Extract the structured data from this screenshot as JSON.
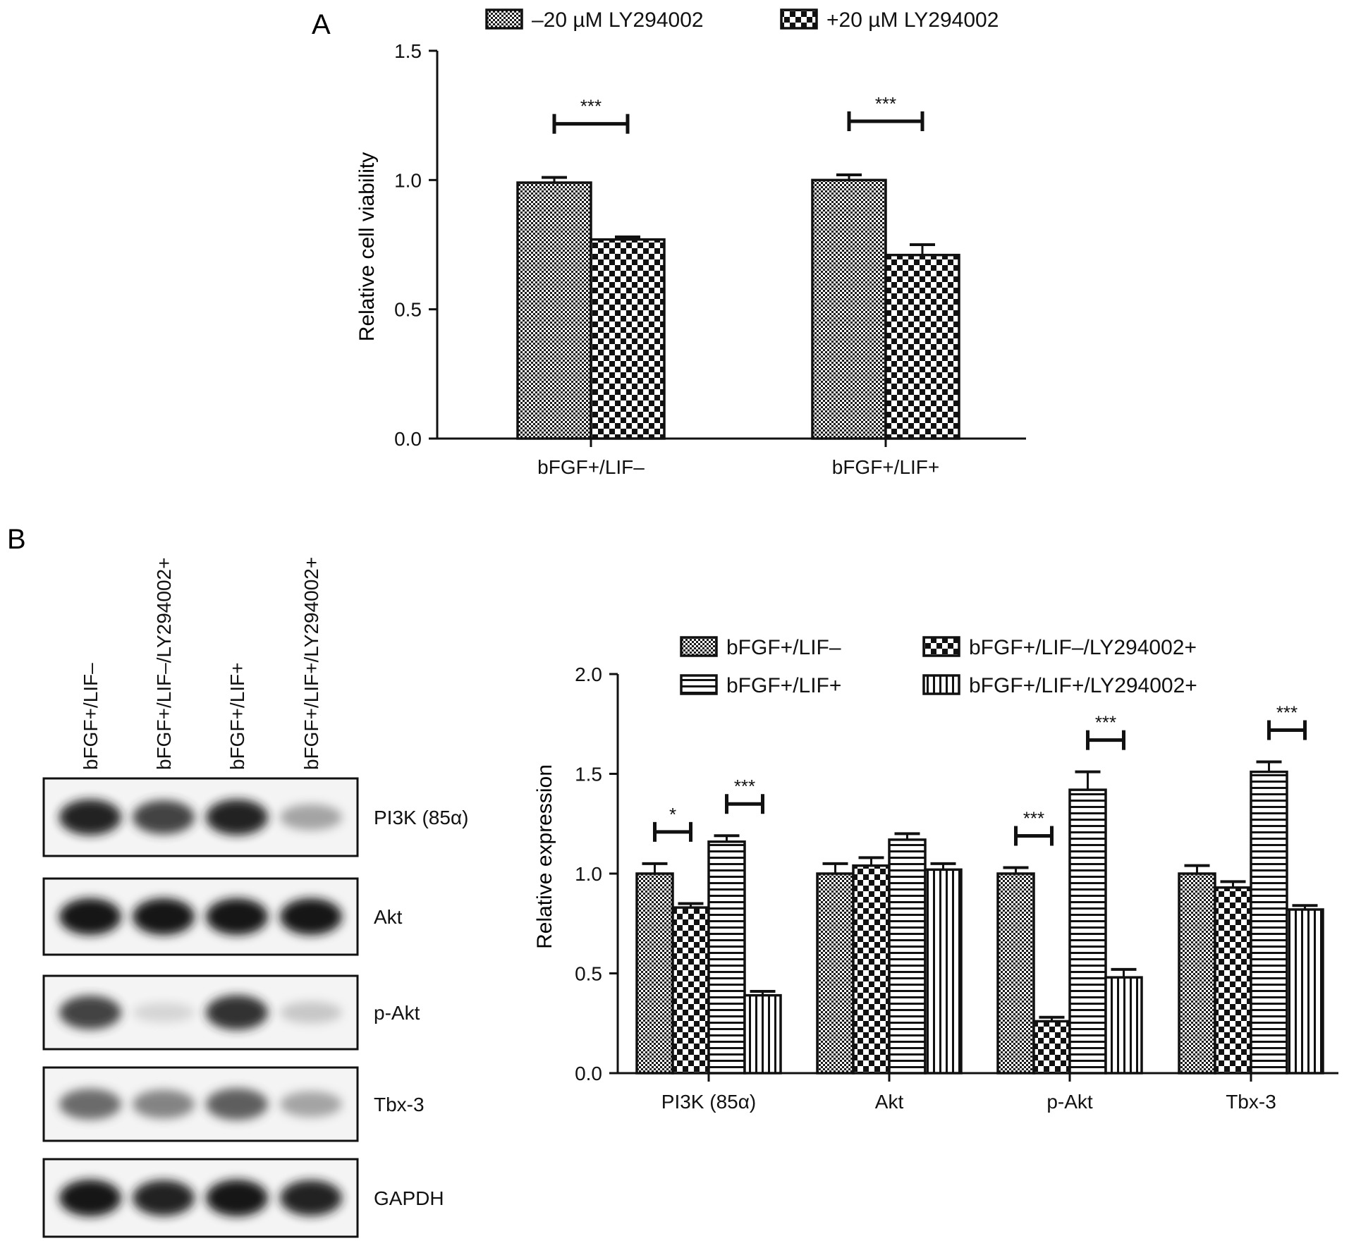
{
  "panels": [
    {
      "label": "A"
    },
    {
      "label": "B"
    }
  ],
  "chart_data": [
    {
      "type": "bar",
      "panel": "A",
      "title": "",
      "xlabel": "",
      "ylabel": "Relative cell viability",
      "ylim": [
        0,
        1.5
      ],
      "yticks": [
        "0.0",
        "0.5",
        "1.0",
        "1.5"
      ],
      "categories": [
        "bFGF+/LIF–",
        "bFGF+/LIF+"
      ],
      "series": [
        {
          "name": "–20 µM LY294002",
          "values": [
            0.99,
            1.0
          ],
          "errors": [
            0.02,
            0.02
          ],
          "pattern": "fine-check"
        },
        {
          "name": "+20 µM LY294002",
          "values": [
            0.77,
            0.71
          ],
          "errors": [
            0.01,
            0.04
          ],
          "pattern": "checker"
        }
      ],
      "significance": [
        {
          "category": 0,
          "between": [
            0,
            1
          ],
          "label": "***"
        },
        {
          "category": 1,
          "between": [
            0,
            1
          ],
          "label": "***"
        }
      ],
      "grid": false,
      "legend": "top"
    },
    {
      "type": "bar",
      "panel": "B",
      "title": "",
      "xlabel": "",
      "ylabel": "Relative expression",
      "ylim": [
        0,
        2.0
      ],
      "yticks": [
        "0.0",
        "0.5",
        "1.0",
        "1.5",
        "2.0"
      ],
      "categories": [
        "PI3K (85α)",
        "Akt",
        "p-Akt",
        "Tbx-3"
      ],
      "series": [
        {
          "name": "bFGF+/LIF–",
          "values": [
            1.0,
            1.0,
            1.0,
            1.0
          ],
          "errors": [
            0.05,
            0.05,
            0.03,
            0.04
          ],
          "pattern": "fine-check"
        },
        {
          "name": "bFGF+/LIF–/LY294002+",
          "values": [
            0.83,
            1.04,
            0.26,
            0.93
          ],
          "errors": [
            0.02,
            0.04,
            0.02,
            0.03
          ],
          "pattern": "checker"
        },
        {
          "name": "bFGF+/LIF+",
          "values": [
            1.16,
            1.17,
            1.42,
            1.51
          ],
          "errors": [
            0.03,
            0.03,
            0.09,
            0.05
          ],
          "pattern": "horizontal"
        },
        {
          "name": "bFGF+/LIF+/LY294002+",
          "values": [
            0.39,
            1.02,
            0.48,
            0.82
          ],
          "errors": [
            0.02,
            0.03,
            0.04,
            0.02
          ],
          "pattern": "vertical"
        }
      ],
      "significance": [
        {
          "category": 0,
          "between": [
            0,
            1
          ],
          "label": "*"
        },
        {
          "category": 0,
          "between": [
            2,
            3
          ],
          "label": "***"
        },
        {
          "category": 2,
          "between": [
            0,
            1
          ],
          "label": "***"
        },
        {
          "category": 2,
          "between": [
            2,
            3
          ],
          "label": "***"
        },
        {
          "category": 3,
          "between": [
            2,
            3
          ],
          "label": "***"
        }
      ],
      "grid": false,
      "legend": "top"
    }
  ],
  "western_blot": {
    "lanes": [
      "bFGF+/LIF–",
      "bFGF+/LIF–/LY294002+",
      "bFGF+/LIF+",
      "bFGF+/LIF+/LY294002+"
    ],
    "rows": [
      {
        "label": "PI3K (85α)",
        "intensity": [
          0.95,
          0.85,
          0.95,
          0.45
        ]
      },
      {
        "label": "Akt",
        "intensity": [
          1.0,
          1.0,
          1.0,
          1.0
        ]
      },
      {
        "label": "p-Akt",
        "intensity": [
          0.85,
          0.15,
          0.9,
          0.25
        ]
      },
      {
        "label": "Tbx-3",
        "intensity": [
          0.7,
          0.6,
          0.75,
          0.45
        ]
      },
      {
        "label": "GAPDH",
        "intensity": [
          1.0,
          0.95,
          1.0,
          0.95
        ]
      }
    ]
  }
}
